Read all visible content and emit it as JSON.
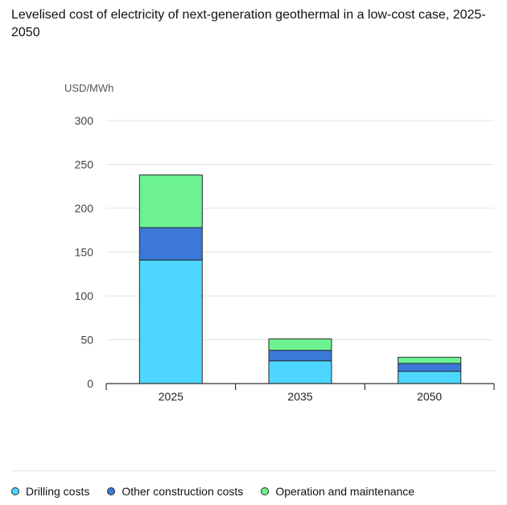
{
  "header": {
    "title": "Levelised cost of electricity of next-generation geothermal in a low-cost case, 2025-2050"
  },
  "chart_data": {
    "type": "bar",
    "stacked": true,
    "title": "Levelised cost of electricity of next-generation geothermal in a low-cost case, 2025-2050",
    "ylabel": "USD/MWh",
    "xlabel": "",
    "ylim": [
      0,
      300
    ],
    "yticks": [
      0,
      50,
      100,
      150,
      200,
      250,
      300
    ],
    "grid": true,
    "legend_position": "bottom",
    "categories": [
      "2025",
      "2035",
      "2050"
    ],
    "series": [
      {
        "name": "Drilling costs",
        "color": "#4dd6ff",
        "values": [
          141,
          26,
          14
        ]
      },
      {
        "name": "Other construction costs",
        "color": "#3b78d8",
        "values": [
          37,
          12,
          9
        ]
      },
      {
        "name": "Operation and maintenance",
        "color": "#6cf290",
        "values": [
          60,
          13,
          7
        ]
      }
    ]
  }
}
